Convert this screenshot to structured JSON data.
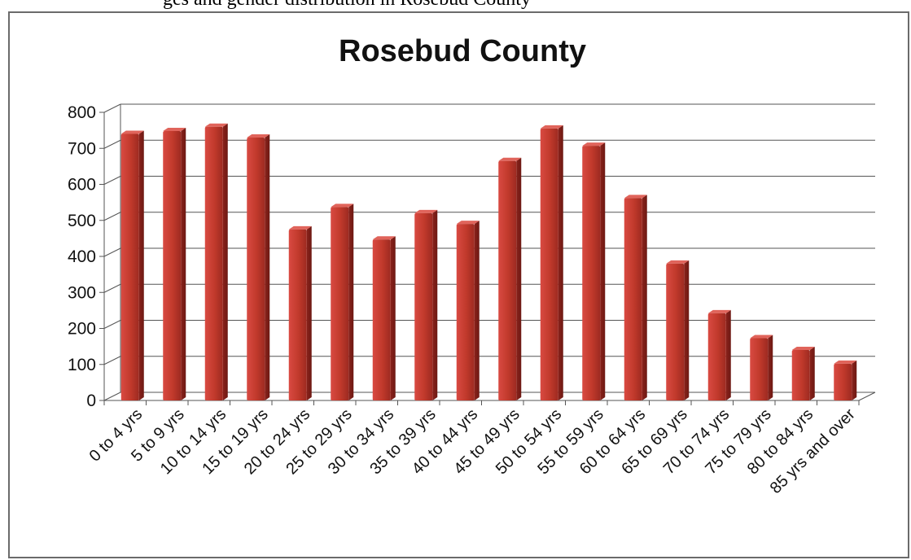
{
  "header_fragment": "ges and gender distribution in Rosebud County",
  "chart_data": {
    "type": "bar",
    "title": "Rosebud County",
    "xlabel": "",
    "ylabel": "",
    "ylim": [
      0,
      800
    ],
    "yticks": [
      0,
      100,
      200,
      300,
      400,
      500,
      600,
      700,
      800
    ],
    "grid": true,
    "legend": "none",
    "bar_color": "#c0392b",
    "categories": [
      "0 to 4 yrs",
      "5 to 9 yrs",
      "10 to 14 yrs",
      "15 to 19 yrs",
      "20 to 24 yrs",
      "25 to 29 yrs",
      "30 to 34 yrs",
      "35 to 39 yrs",
      "40 to 44 yrs",
      "45 to 49 yrs",
      "50 to 54 yrs",
      "55 to 59 yrs",
      "60 to 64 yrs",
      "65 to 69 yrs",
      "70 to 74 yrs",
      "75 to 79 yrs",
      "80 to 84 yrs",
      "85 yrs and over"
    ],
    "values": [
      740,
      748,
      760,
      730,
      475,
      537,
      447,
      520,
      490,
      665,
      755,
      707,
      562,
      380,
      242,
      173,
      140,
      102
    ]
  }
}
